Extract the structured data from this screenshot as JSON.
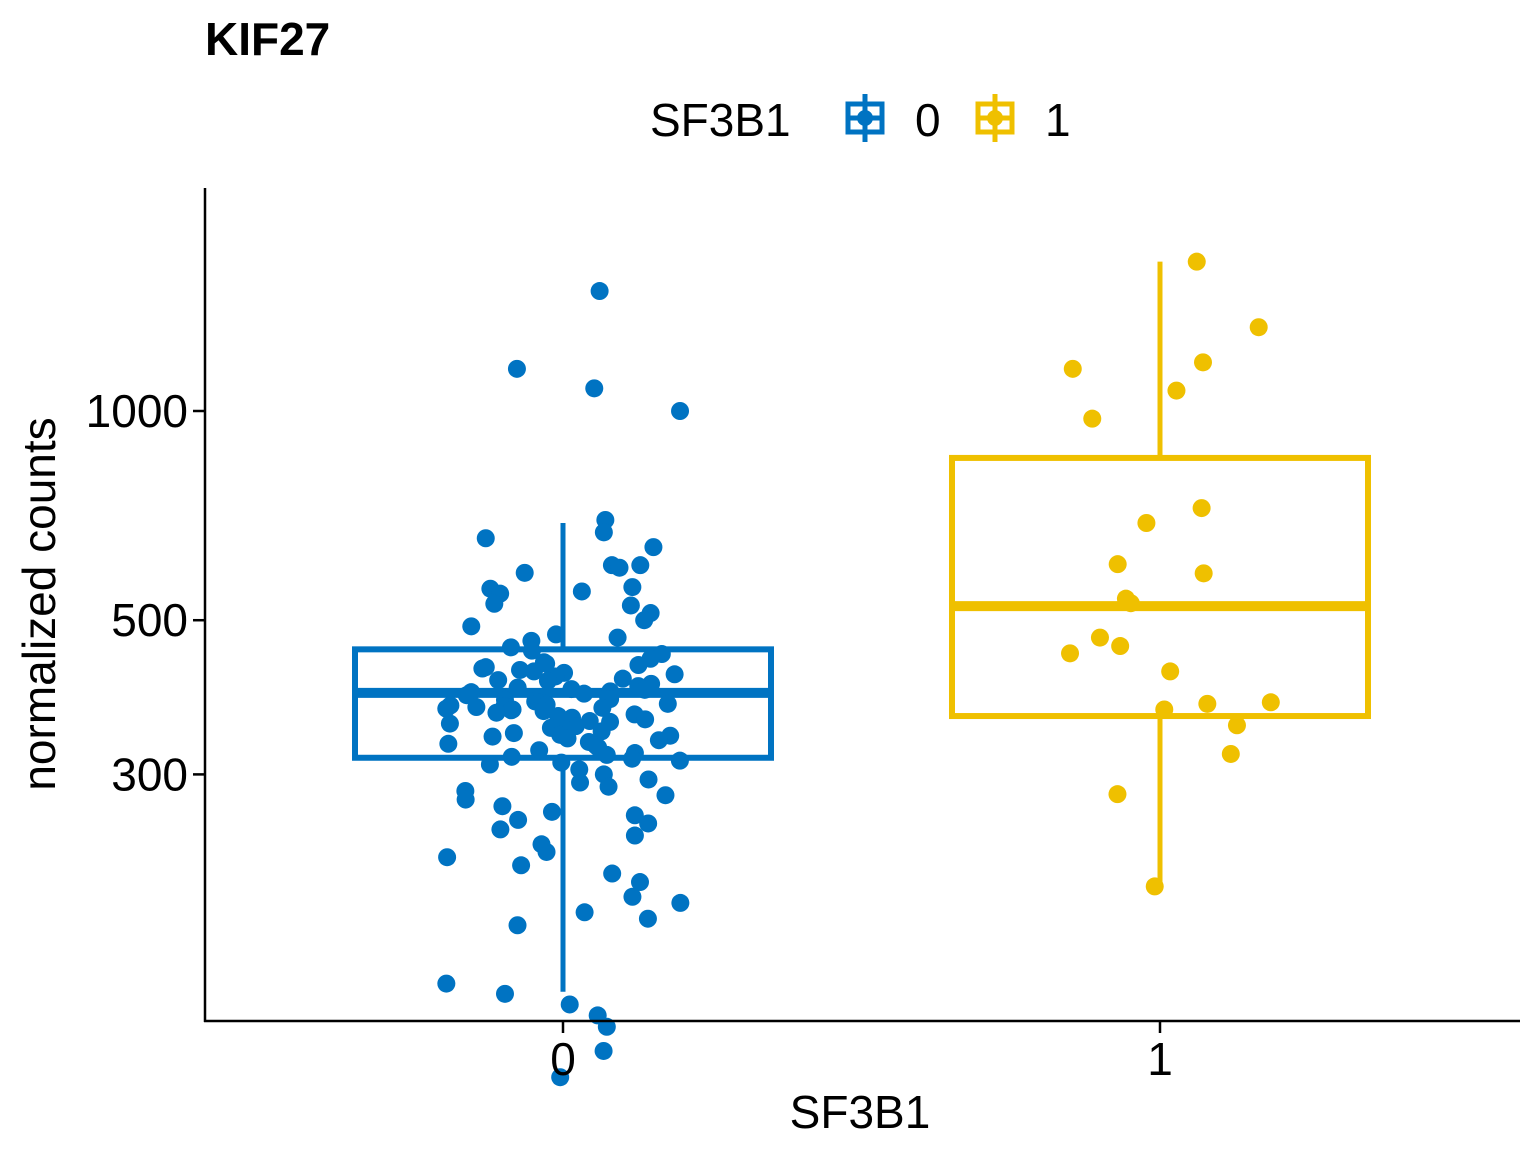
{
  "chart_data": {
    "type": "box",
    "title": "KIF27",
    "xlabel": "SF3B1",
    "ylabel": "normalized counts",
    "y_scale": "log10",
    "ylim": [
      95,
      2000
    ],
    "y_ticks": [
      300,
      500,
      1000
    ],
    "y_tick_labels": [
      "300",
      "500",
      "1000"
    ],
    "categories": [
      "0",
      "1"
    ],
    "legend": {
      "title": "SF3B1",
      "position": "top",
      "entries": [
        {
          "label": "0",
          "color": "#0073C2"
        },
        {
          "label": "1",
          "color": "#EFC000"
        }
      ]
    },
    "grid": false,
    "boxes": [
      {
        "category": "0",
        "color": "#0073C2",
        "whisker_low": 146,
        "q1": 317,
        "median": 393,
        "q3": 454,
        "whisker_high": 690
      },
      {
        "category": "1",
        "color": "#EFC000",
        "whisker_low": 206,
        "q1": 364,
        "median": 524,
        "q3": 856,
        "whisker_high": 1640
      }
    ],
    "points": [
      {
        "category": "0",
        "color": "#0073C2",
        "values": [
          1488,
          1150,
          1078,
          1000,
          697,
          669,
          656,
          637,
          600,
          600,
          595,
          585,
          558,
          555,
          550,
          546,
          528,
          525,
          512,
          500,
          490,
          477,
          472,
          467,
          457,
          452,
          447,
          440,
          435,
          433,
          431,
          428,
          426,
          424,
          422,
          420,
          418,
          415,
          412,
          410,
          409,
          405,
          402,
          400,
          398,
          397,
          395,
          394,
          392,
          390,
          388,
          386,
          385,
          384,
          382,
          381,
          380,
          379,
          378,
          377,
          376,
          375,
          374,
          373,
          372,
          371,
          370,
          368,
          366,
          364,
          362,
          360,
          358,
          357,
          355,
          352,
          350,
          348,
          346,
          344,
          342,
          341,
          340,
          338,
          336,
          334,
          332,
          330,
          328,
          325,
          322,
          320,
          318,
          316,
          314,
          312,
          310,
          305,
          300,
          295,
          292,
          288,
          284,
          280,
          276,
          270,
          265,
          262,
          258,
          255,
          250,
          245,
          238,
          232,
          228,
          222,
          216,
          210,
          200,
          196,
          190,
          186,
          182,
          150,
          145,
          140,
          135,
          130,
          120,
          110
        ]
      },
      {
        "category": "1",
        "color": "#EFC000",
        "values": [
          1640,
          1320,
          1175,
          1150,
          1070,
          975,
          725,
          690,
          602,
          584,
          537,
          529,
          472,
          459,
          448,
          422,
          381,
          379,
          372,
          353,
          321,
          281,
          207
        ]
      }
    ]
  }
}
